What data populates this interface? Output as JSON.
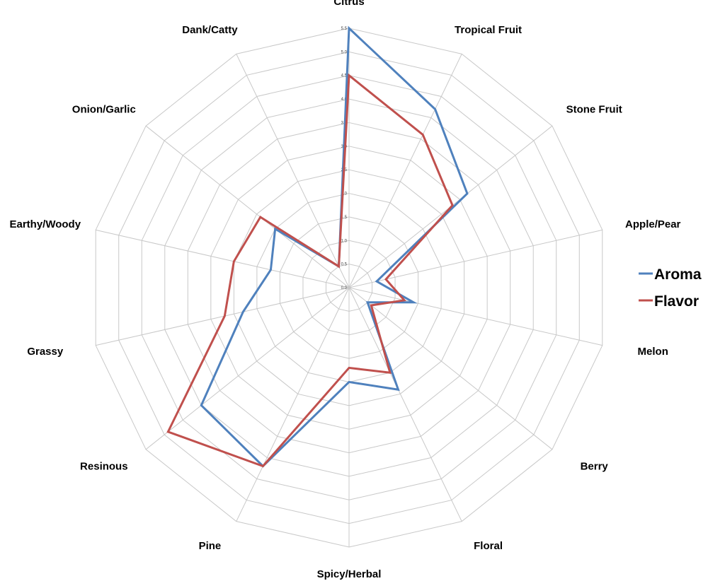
{
  "chart_data": {
    "type": "radar",
    "categories": [
      "Citrus",
      "Tropical Fruit",
      "Stone Fruit",
      "Apple/Pear",
      "Melon",
      "Berry",
      "Floral",
      "Spicy/Herbal",
      "Pine",
      "Resinous",
      "Grassy",
      "Earthy/Woody",
      "Onion/Garlic",
      "Dank/Catty"
    ],
    "series": [
      {
        "name": "Aroma",
        "color": "#4f81bd",
        "values": [
          5.5,
          4.2,
          3.2,
          0.6,
          1.4,
          0.5,
          2.4,
          2.0,
          4.2,
          4.0,
          2.3,
          1.7,
          2.0,
          0.5
        ]
      },
      {
        "name": "Flavor",
        "color": "#c0504d",
        "values": [
          4.5,
          3.6,
          2.8,
          0.8,
          1.2,
          0.6,
          2.0,
          1.7,
          4.2,
          4.9,
          2.7,
          2.5,
          2.4,
          0.5
        ]
      }
    ],
    "ylim": [
      0,
      5.5
    ],
    "ticks": [
      "0.0",
      "0.5",
      "1.0",
      "1.5",
      "2.0",
      "2.5",
      "3.0",
      "3.5",
      "4.0",
      "4.5",
      "5.0",
      "5.5"
    ],
    "grid": true,
    "legend_position": "right"
  }
}
